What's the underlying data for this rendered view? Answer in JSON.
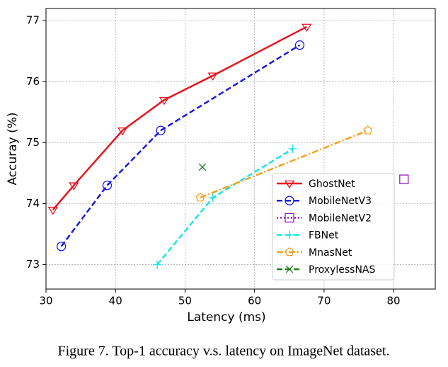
{
  "chart_data": {
    "type": "line",
    "caption": "Figure 7. Top-1 accuracy v.s. latency on ImageNet dataset.",
    "xlabel": "Latency (ms)",
    "ylabel": "Accuray (%)",
    "xlim": [
      30,
      86
    ],
    "ylim": [
      72.6,
      77.2
    ],
    "xticks": [
      30,
      40,
      50,
      60,
      70,
      80
    ],
    "yticks": [
      73,
      74,
      75,
      76,
      77
    ],
    "grid": true,
    "legend": "lower right",
    "series": [
      {
        "name": "GhostNet",
        "color": "#e8141e",
        "marker": "triangle-down",
        "dash": "solid",
        "x": [
          31,
          34,
          41,
          47,
          54,
          67.5
        ],
        "values": [
          73.9,
          74.3,
          75.2,
          75.7,
          76.1,
          76.9
        ]
      },
      {
        "name": "MobileNetV3",
        "color": "#1a1ae6",
        "marker": "circle",
        "dash": "dashed",
        "x": [
          32.2,
          38.8,
          46.5,
          66.5
        ],
        "values": [
          73.3,
          74.3,
          75.2,
          76.6
        ]
      },
      {
        "name": "MobileNetV2",
        "color": "#9a19c8",
        "marker": "square",
        "dash": "dotted",
        "x": [
          81.5
        ],
        "values": [
          74.4
        ]
      },
      {
        "name": "FBNet",
        "color": "#19e6e6",
        "marker": "plus",
        "dash": "dashed",
        "x": [
          46,
          54,
          65.5
        ],
        "values": [
          73.0,
          74.1,
          74.9
        ]
      },
      {
        "name": "MnasNet",
        "color": "#f5a01e",
        "marker": "pentagon",
        "dash": "dashdot",
        "x": [
          52.2,
          76.3
        ],
        "values": [
          74.1,
          75.2
        ]
      },
      {
        "name": "ProxylessNAS",
        "color": "#1e7d1e",
        "marker": "x",
        "dash": "dashed",
        "x": [
          52.5
        ],
        "values": [
          74.6
        ]
      }
    ]
  }
}
